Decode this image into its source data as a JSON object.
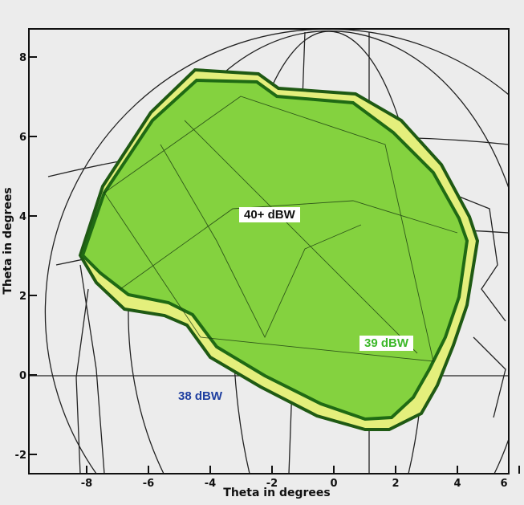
{
  "map": {
    "x_axis": {
      "label": "Theta in degrees",
      "ticks": [
        -8,
        -6,
        -4,
        -2,
        0,
        2,
        4,
        6
      ]
    },
    "y_axis": {
      "label": "Theta in degrees",
      "ticks": [
        -2,
        0,
        2,
        4,
        6,
        8
      ]
    },
    "contours": [
      {
        "label": "40+ dBW",
        "color": "#7ccf3a"
      },
      {
        "label": "39 dBW",
        "color": "#e8f07a"
      },
      {
        "label": "38 dBW",
        "color": "#1f3fa0"
      }
    ]
  }
}
